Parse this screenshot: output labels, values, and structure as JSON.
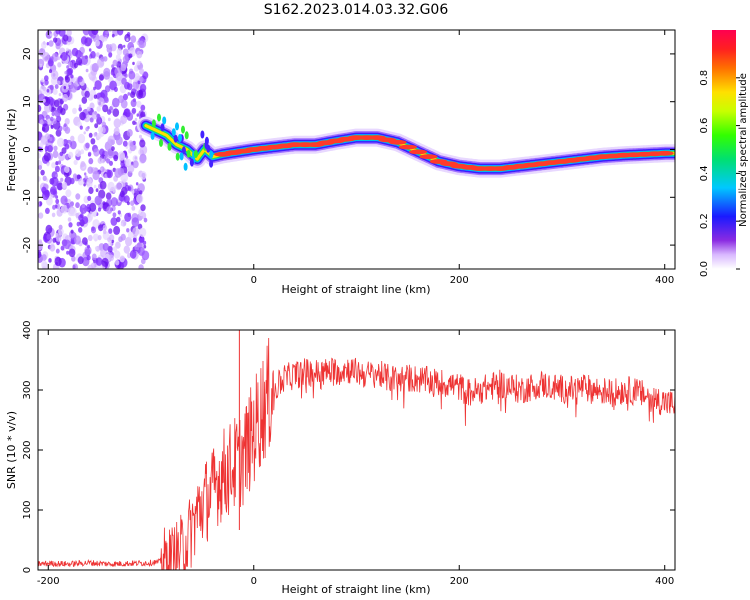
{
  "figure_title": "S162.2023.014.03.32.G06",
  "chart_data": [
    {
      "type": "heatmap",
      "title": "S162.2023.014.03.32.G06",
      "xlabel": "Height of straight line (km)",
      "ylabel": "Frequency (Hz)",
      "xlim": [
        -210,
        410
      ],
      "ylim": [
        -25,
        25
      ],
      "xticks": [
        "-200",
        "0",
        "200",
        "400"
      ],
      "yticks": [
        "-20",
        "-10",
        "0",
        "10",
        "20"
      ],
      "colorbar": {
        "label": "Normalized spectral amplitude",
        "range": [
          0,
          1
        ],
        "ticks": [
          "0.0",
          "0.2",
          "0.4",
          "0.6",
          "0.8"
        ]
      },
      "noise_region_x": [
        -210,
        -105
      ],
      "ridge": {
        "x": [
          -105,
          -95,
          -85,
          -75,
          -65,
          -55,
          -48,
          -40,
          -30,
          -15,
          0,
          20,
          40,
          60,
          80,
          100,
          120,
          140,
          160,
          180,
          200,
          220,
          240,
          260,
          280,
          300,
          320,
          340,
          360,
          380,
          400,
          410
        ],
        "y": [
          5,
          4,
          3,
          1,
          0,
          -2,
          0,
          -1.5,
          -1,
          -0.5,
          0,
          0.5,
          1,
          1,
          1.8,
          2.5,
          2.5,
          1.5,
          -0.5,
          -2.5,
          -3.5,
          -4,
          -4,
          -3.5,
          -3,
          -2.5,
          -2,
          -1.5,
          -1.2,
          -1,
          -0.8,
          -0.8
        ]
      },
      "grid": false
    },
    {
      "type": "line",
      "xlabel": "Height of straight line (km)",
      "ylabel": "SNR (10 * v/v)",
      "xlim": [
        -210,
        410
      ],
      "ylim": [
        0,
        400
      ],
      "xticks": [
        "-200",
        "0",
        "200",
        "400"
      ],
      "yticks": [
        "0",
        "100",
        "200",
        "300",
        "400"
      ],
      "color": "#ee3333",
      "series": [
        {
          "x": [
            -210,
            -200,
            -180,
            -160,
            -140,
            -120,
            -100,
            -90,
            -80,
            -75,
            -70,
            -65,
            -60,
            -55,
            -50,
            -45,
            -40,
            -35,
            -30,
            -25,
            -20,
            -15,
            -10,
            -5,
            0,
            5,
            10,
            15,
            20,
            25,
            30,
            40,
            50,
            60,
            70,
            80,
            90,
            100,
            110,
            120,
            130,
            140,
            150,
            160,
            170,
            180,
            190,
            200,
            210,
            220,
            230,
            240,
            250,
            260,
            270,
            280,
            290,
            300,
            310,
            320,
            330,
            340,
            350,
            360,
            370,
            380,
            390,
            400,
            410
          ],
          "values": [
            10,
            11,
            10,
            12,
            10,
            11,
            12,
            14,
            18,
            25,
            35,
            50,
            70,
            95,
            110,
            120,
            130,
            150,
            160,
            165,
            175,
            180,
            190,
            210,
            230,
            255,
            275,
            290,
            300,
            310,
            320,
            325,
            330,
            328,
            330,
            332,
            335,
            330,
            325,
            328,
            320,
            318,
            320,
            318,
            315,
            312,
            310,
            305,
            295,
            300,
            305,
            310,
            305,
            300,
            305,
            310,
            305,
            302,
            300,
            305,
            300,
            298,
            295,
            300,
            298,
            292,
            285,
            280,
            275
          ]
        }
      ],
      "annotations": [
        {
          "x": -14,
          "value": 400,
          "note": "spike"
        }
      ],
      "grid": false
    }
  ]
}
